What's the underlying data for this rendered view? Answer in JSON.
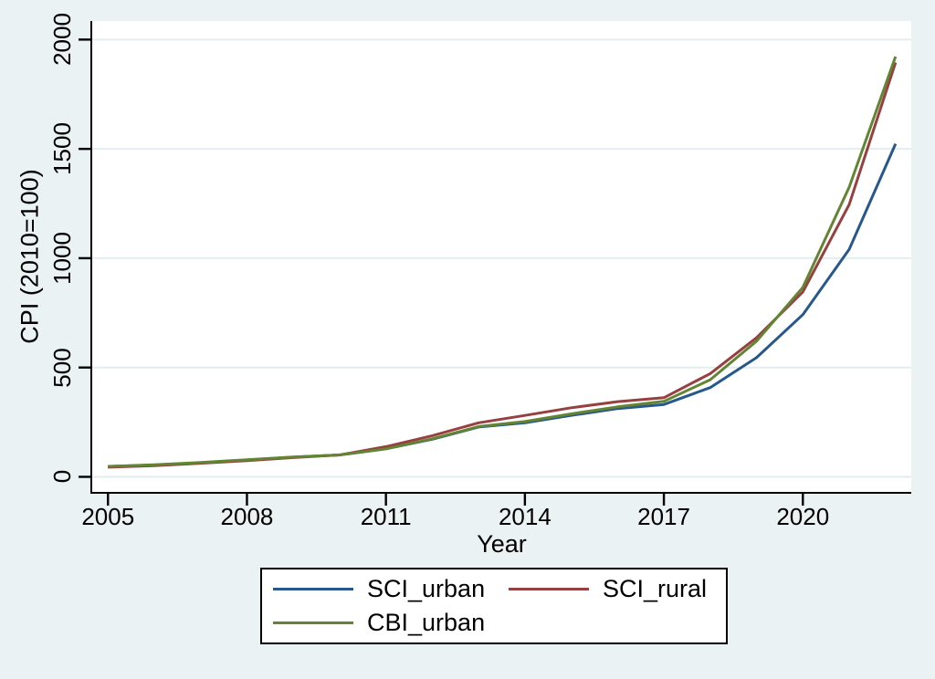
{
  "figure": {
    "background": "#eaf2f3",
    "plot_background": "#ffffff",
    "grid_color": "#e2edf0",
    "axis_color": "#000000",
    "text_color": "#000000"
  },
  "chart_data": {
    "type": "line",
    "title": "",
    "xlabel": "Year",
    "ylabel": "CPI (2010=100)",
    "x": [
      2005,
      2006,
      2007,
      2008,
      2009,
      2010,
      2011,
      2012,
      2013,
      2014,
      2015,
      2016,
      2017,
      2018,
      2019,
      2020,
      2021,
      2022
    ],
    "series": [
      {
        "name": "SCI_urban",
        "color": "#27588c",
        "values": [
          47,
          54,
          64,
          77,
          90,
          100,
          128,
          172,
          228,
          247,
          281,
          312,
          331,
          408,
          545,
          742,
          1040,
          1523
        ]
      },
      {
        "name": "SCI_rural",
        "color": "#96403f",
        "values": [
          44,
          51,
          62,
          74,
          88,
          100,
          138,
          188,
          247,
          281,
          316,
          344,
          362,
          472,
          636,
          846,
          1245,
          1895
        ]
      },
      {
        "name": "CBI_urban",
        "color": "#638433",
        "values": [
          48,
          55,
          66,
          78,
          91,
          100,
          128,
          174,
          230,
          253,
          288,
          320,
          345,
          444,
          620,
          867,
          1325,
          1922
        ]
      }
    ],
    "x_ticks": [
      2005,
      2008,
      2011,
      2014,
      2017,
      2020
    ],
    "x_tick_labels": [
      "2005",
      "2008",
      "2011",
      "2014",
      "2017",
      "2020"
    ],
    "y_ticks": [
      0,
      500,
      1000,
      1500,
      2000
    ],
    "y_tick_labels": [
      "0",
      "500",
      "1000",
      "1500",
      "2000"
    ],
    "xlim": [
      2004.66,
      2022.34
    ],
    "ylim": [
      -69,
      2085
    ],
    "grid": "horizontal",
    "legend_position": "bottom-center",
    "legend_order_note": "row1: SCI_urban, SCI_rural; row2: CBI_urban"
  }
}
